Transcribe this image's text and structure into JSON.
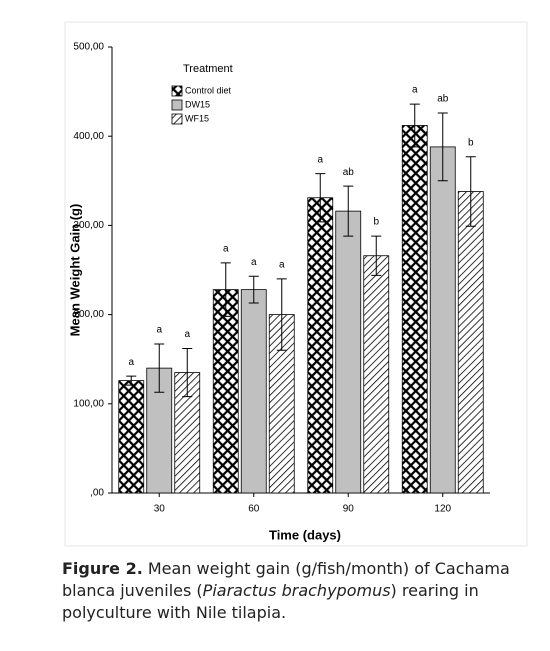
{
  "chart_data": {
    "type": "bar",
    "y_label": "Mean Weight Gain (g)",
    "x_label": "Time (days)",
    "legend_title": "Treatment",
    "legend": "upper-left",
    "categories": [
      "30",
      "60",
      "90",
      "120"
    ],
    "series": [
      {
        "name": "Control diet",
        "color": "#000000",
        "pattern": "crosshatch",
        "values": [
          126,
          228,
          331,
          412
        ],
        "errors": [
          5,
          30,
          27,
          24
        ],
        "letters": [
          "a",
          "a",
          "a",
          "a"
        ]
      },
      {
        "name": "DW15",
        "color": "#c0c0c0",
        "pattern": "solid",
        "values": [
          140,
          228,
          316,
          388
        ],
        "errors": [
          27,
          15,
          28,
          38
        ],
        "letters": [
          "a",
          "a",
          "ab",
          "ab"
        ]
      },
      {
        "name": "WF15",
        "color": "#000000",
        "pattern": "diagonal",
        "values": [
          135,
          200,
          266,
          338
        ],
        "errors": [
          27,
          40,
          22,
          39
        ],
        "letters": [
          "a",
          "a",
          "b",
          "b"
        ]
      }
    ],
    "ylim": [
      0,
      500
    ],
    "yticks": [
      {
        "value": 0,
        "label": ",00"
      },
      {
        "value": 100,
        "label": "100,00"
      },
      {
        "value": 200,
        "label": "200,00"
      },
      {
        "value": 300,
        "label": "300,00"
      },
      {
        "value": 400,
        "label": "400,00"
      },
      {
        "value": 500,
        "label": "500,00"
      }
    ],
    "grid": false
  },
  "caption": [
    {
      "text": "Figure 2.",
      "style": "bold"
    },
    {
      "text": " Mean weight gain (g/fish/month) of Cachama blanca juveniles (",
      "style": "normal"
    },
    {
      "text": "Piaractus brachypomus",
      "style": "italic"
    },
    {
      "text": ") rearing in polyculture with Nile tilapia.",
      "style": "normal"
    }
  ]
}
